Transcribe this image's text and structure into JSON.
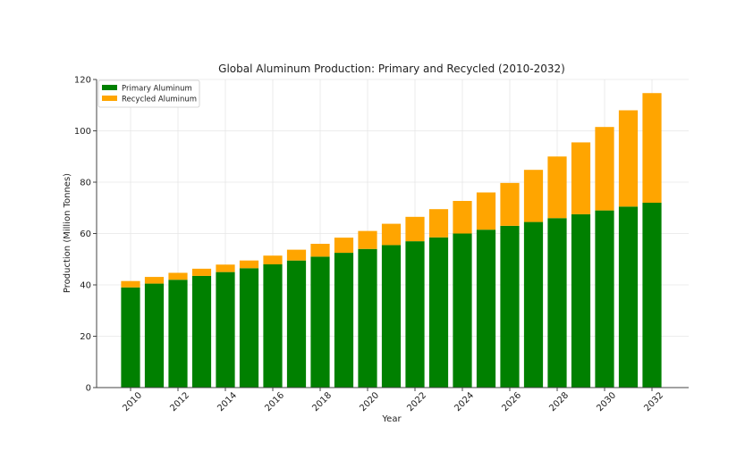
{
  "chart_data": {
    "type": "bar",
    "stacked": true,
    "title": "Global Aluminum Production: Primary and Recycled (2010-2032)",
    "xlabel": "Year",
    "ylabel": "Production (Million Tonnes)",
    "ylim": [
      0,
      120
    ],
    "yticks": [
      0,
      20,
      40,
      60,
      80,
      100,
      120
    ],
    "categories": [
      2010,
      2011,
      2012,
      2013,
      2014,
      2015,
      2016,
      2017,
      2018,
      2019,
      2020,
      2021,
      2022,
      2023,
      2024,
      2025,
      2026,
      2027,
      2028,
      2029,
      2030,
      2031,
      2032
    ],
    "xtick_labels": [
      "2010",
      "2012",
      "2014",
      "2016",
      "2018",
      "2020",
      "2022",
      "2024",
      "2026",
      "2028",
      "2030",
      "2032"
    ],
    "grid": true,
    "legend_position": "top-left",
    "series": [
      {
        "name": "Primary Aluminum",
        "color": "#008000",
        "values": [
          39.0,
          40.5,
          42.0,
          43.5,
          45.0,
          46.5,
          48.0,
          49.5,
          51.0,
          52.5,
          54.0,
          55.5,
          57.0,
          58.5,
          60.0,
          61.5,
          63.0,
          64.5,
          66.0,
          67.5,
          69.0,
          70.5,
          72.0
        ]
      },
      {
        "name": "Recycled Aluminum",
        "color": "#FFA500",
        "values": [
          2.5,
          2.6,
          2.7,
          2.8,
          2.9,
          3.0,
          3.4,
          4.2,
          5.0,
          5.9,
          7.0,
          8.3,
          9.5,
          11.0,
          12.7,
          14.5,
          16.7,
          20.3,
          24.0,
          28.0,
          32.5,
          37.5,
          42.7
        ]
      }
    ]
  }
}
